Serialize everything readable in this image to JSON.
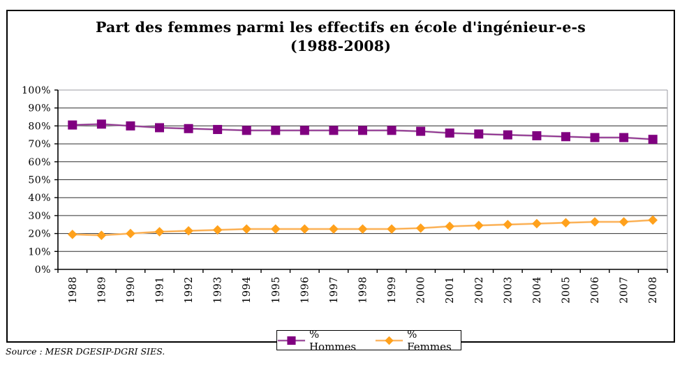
{
  "title": {
    "line1": "Part des femmes parmi les effectifs en école d'ingénieur-e-s",
    "line2": "(1988-2008)"
  },
  "source": "Source : MESR DGESIP-DGRI SIES.",
  "legend": {
    "items": [
      {
        "label": "% Hommes",
        "marker": "square",
        "color": "#800080"
      },
      {
        "label": "% Femmes",
        "marker": "diamond",
        "color": "#ffa11c"
      }
    ]
  },
  "chart_data": {
    "type": "line",
    "title": "Part des femmes parmi les effectifs en école d'ingénieur-e-s (1988-2008)",
    "categories": [
      "1988",
      "1989",
      "1990",
      "1991",
      "1992",
      "1993",
      "1994",
      "1995",
      "1996",
      "1997",
      "1998",
      "1999",
      "2000",
      "2001",
      "2002",
      "2003",
      "2004",
      "2005",
      "2006",
      "2007",
      "2008"
    ],
    "series": [
      {
        "name": "% Hommes",
        "marker": "square",
        "marker_color": "#800080",
        "line_color": "#c2a6c2",
        "line_core": "#8a1f8a",
        "values": [
          80.5,
          81,
          80,
          79,
          78.5,
          78,
          77.5,
          77.5,
          77.5,
          77.5,
          77.5,
          77.5,
          77,
          76,
          75.5,
          75,
          74.5,
          74,
          73.5,
          73.5,
          72.5
        ]
      },
      {
        "name": "% Femmes",
        "marker": "diamond",
        "marker_color": "#ffa11c",
        "line_color": "#fcd3a0",
        "line_core": "#fba53c",
        "values": [
          19.5,
          19,
          20,
          21,
          21.5,
          22,
          22.5,
          22.5,
          22.5,
          22.5,
          22.5,
          22.5,
          23,
          24,
          24.5,
          25,
          25.5,
          26,
          26.5,
          26.5,
          27.5
        ]
      }
    ],
    "ylim": [
      0,
      100
    ],
    "y_tick_labels": [
      "0%",
      "10%",
      "20%",
      "30%",
      "40%",
      "50%",
      "60%",
      "70%",
      "80%",
      "90%",
      "100%"
    ],
    "grid": "horizontal",
    "gridline_color": "#2f2f2f",
    "top_border_color": "#9b9ba3",
    "legend_position": "bottom"
  }
}
